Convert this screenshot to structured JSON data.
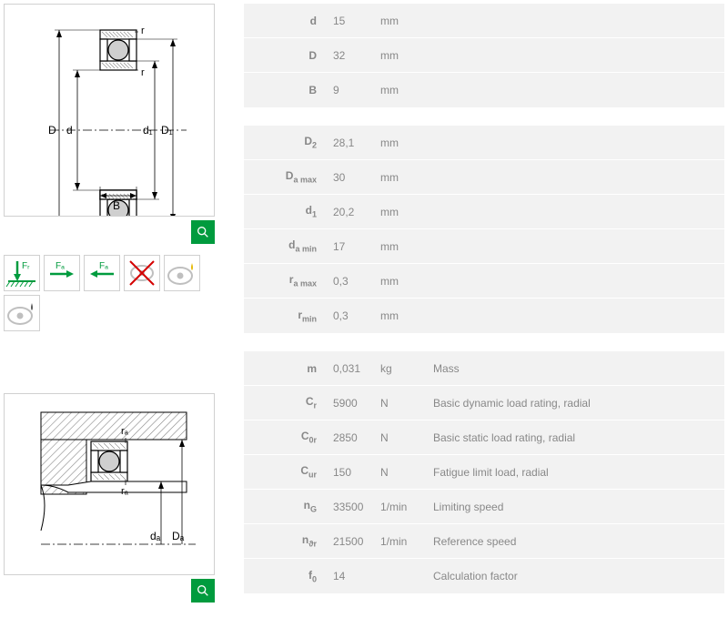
{
  "colors": {
    "table_bg": "#f2f2f2",
    "text": "#888888",
    "border": "#d0d0d0",
    "accent": "#009b3e",
    "diagram_stroke": "#000000",
    "hatch": "#888888",
    "ball_fill": "#cfcfcf"
  },
  "table1": {
    "rows": [
      {
        "label": "d",
        "value": "15",
        "unit": "mm"
      },
      {
        "label": "D",
        "value": "32",
        "unit": "mm"
      },
      {
        "label": "B",
        "value": "9",
        "unit": "mm"
      }
    ]
  },
  "table2": {
    "rows": [
      {
        "label_html": "D<sub>2</sub>",
        "value": "28,1",
        "unit": "mm"
      },
      {
        "label_html": "D<sub>a max</sub>",
        "value": "30",
        "unit": "mm"
      },
      {
        "label_html": "d<sub>1</sub>",
        "value": "20,2",
        "unit": "mm"
      },
      {
        "label_html": "d<sub>a min</sub>",
        "value": "17",
        "unit": "mm"
      },
      {
        "label_html": "r<sub>a max</sub>",
        "value": "0,3",
        "unit": "mm"
      },
      {
        "label_html": "r<sub>min</sub>",
        "value": "0,3",
        "unit": "mm"
      }
    ]
  },
  "table3": {
    "rows": [
      {
        "label_html": "m",
        "value": "0,031",
        "unit": "kg",
        "desc": "Mass"
      },
      {
        "label_html": "C<sub>r</sub>",
        "value": "5900",
        "unit": "N",
        "desc": "Basic dynamic load rating, radial"
      },
      {
        "label_html": "C<sub>0r</sub>",
        "value": "2850",
        "unit": "N",
        "desc": "Basic static load rating, radial"
      },
      {
        "label_html": "C<sub>ur</sub>",
        "value": "150",
        "unit": "N",
        "desc": "Fatigue limit load, radial"
      },
      {
        "label_html": "n<sub>G</sub>",
        "value": "33500",
        "unit": "1/min",
        "desc": "Limiting speed"
      },
      {
        "label_html": "n<sub>ϑr</sub>",
        "value": "21500",
        "unit": "1/min",
        "desc": "Reference speed"
      },
      {
        "label_html": "f<sub>0</sub>",
        "value": "14",
        "unit": "",
        "desc": "Calculation factor"
      }
    ]
  },
  "diagram1": {
    "labels": {
      "D": "D",
      "d": "d",
      "d1": "d₁",
      "D1": "D₁",
      "B": "B",
      "r": "r"
    }
  },
  "diagram2": {
    "labels": {
      "ra": "rₐ",
      "da": "dₐ",
      "Da": "Dₐ"
    }
  },
  "load_icons": {
    "Fr": "Fᵣ",
    "Fa": "Fₐ"
  }
}
